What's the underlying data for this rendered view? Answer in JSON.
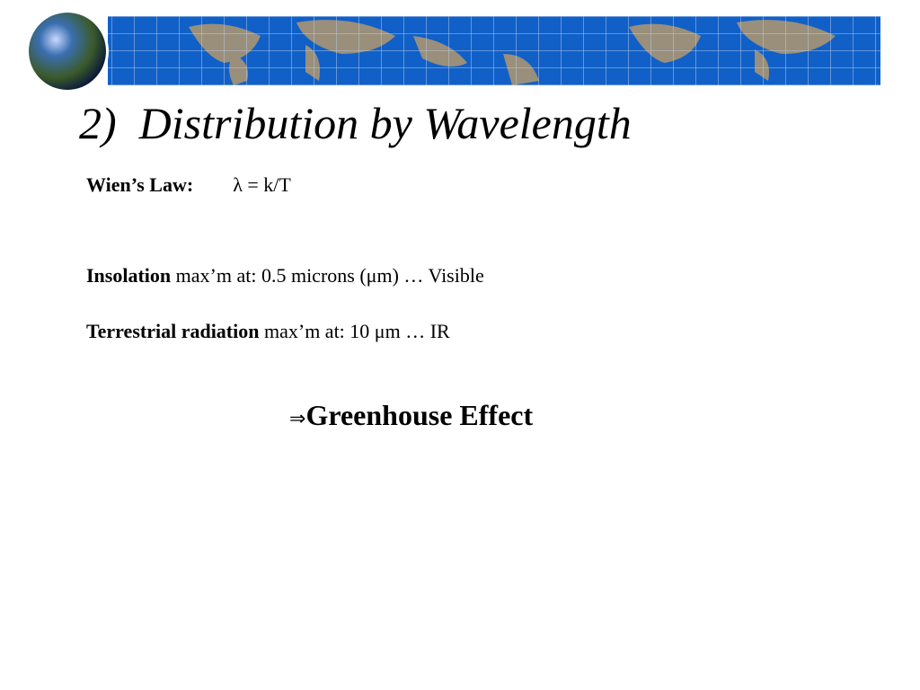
{
  "slide": {
    "title": "2)  Distribution by Wavelength",
    "lines": [
      {
        "bold": "Wien’s Law:",
        "text": "λ = k/T"
      },
      {
        "bold": "Insolation",
        "text": " max’m at: 0.5 microns (μm) … Visible"
      },
      {
        "bold": "Terrestrial radiation",
        "text": " max’m at: 10 μm … IR"
      }
    ],
    "conclusion": {
      "symbol": "⇒",
      "text": "Greenhouse Effect"
    }
  }
}
